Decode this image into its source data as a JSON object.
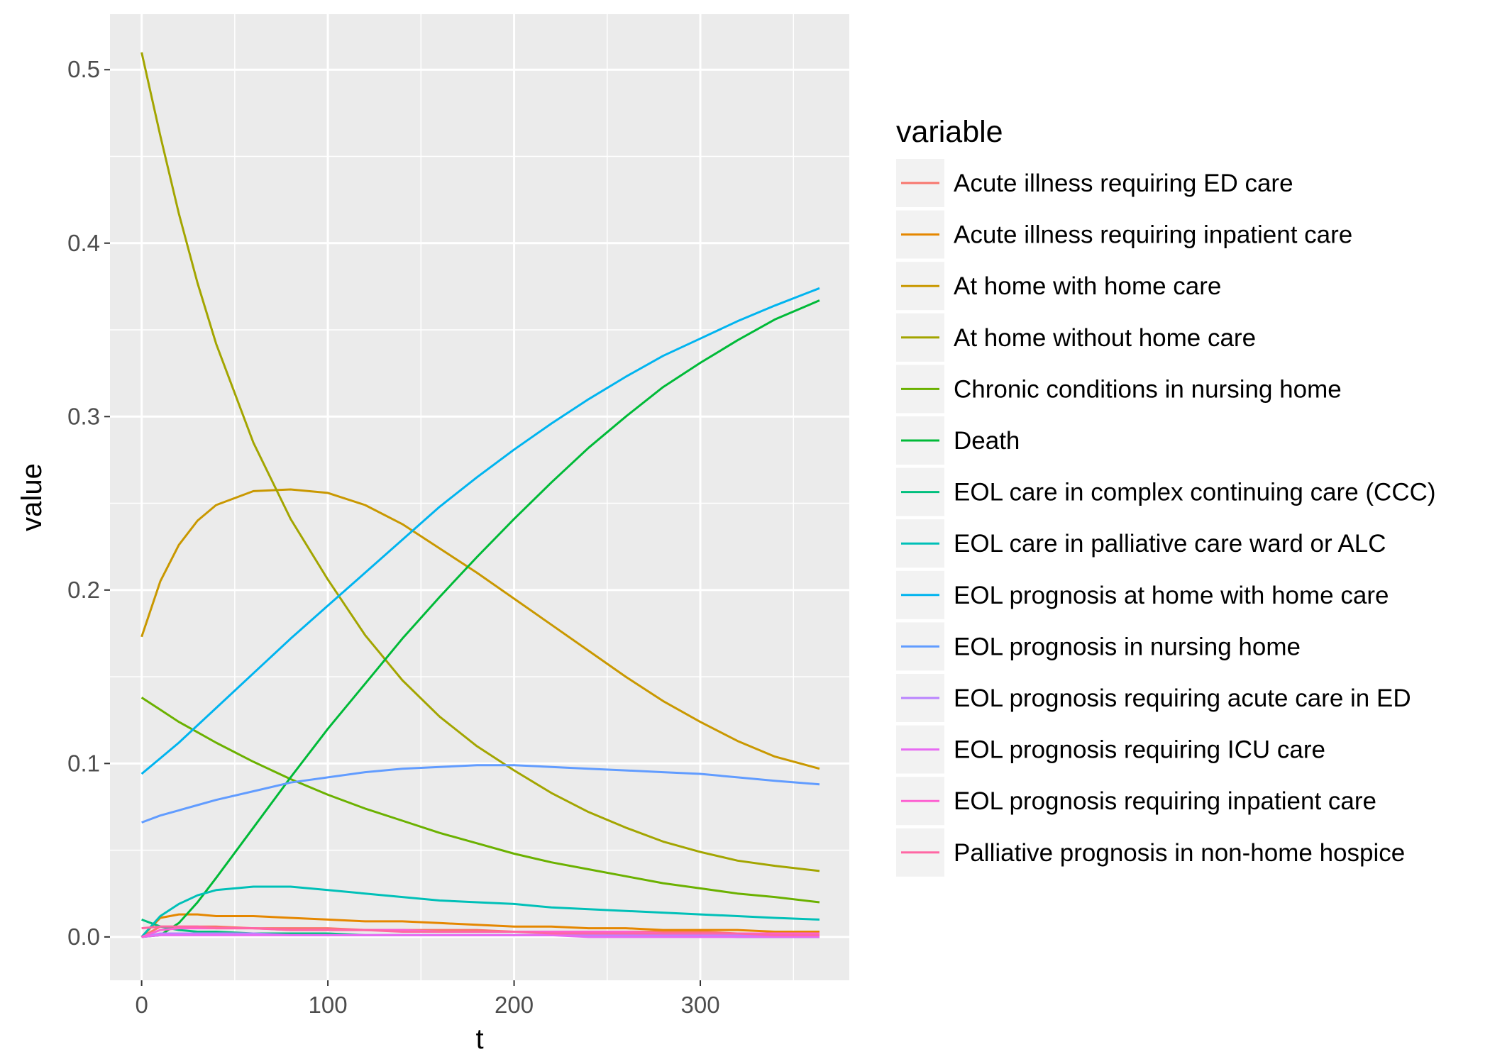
{
  "chart_data": {
    "type": "line",
    "xlabel": "t",
    "ylabel": "value",
    "xlim": [
      -17,
      380
    ],
    "ylim": [
      -0.025,
      0.532
    ],
    "x_ticks": [
      "0",
      "100",
      "200",
      "300"
    ],
    "y_ticks": [
      "0.0",
      "0.1",
      "0.2",
      "0.3",
      "0.4",
      "0.5"
    ],
    "grid": true,
    "legend_title": "variable",
    "legend_position": "right",
    "x": [
      0,
      10,
      20,
      30,
      40,
      60,
      80,
      100,
      120,
      140,
      160,
      180,
      200,
      220,
      240,
      260,
      280,
      300,
      320,
      340,
      364
    ],
    "series": [
      {
        "name": "Acute illness requiring ED care",
        "color": "#F8766D",
        "values": [
          0.0,
          0.006,
          0.006,
          0.006,
          0.006,
          0.005,
          0.005,
          0.005,
          0.004,
          0.004,
          0.004,
          0.004,
          0.003,
          0.003,
          0.003,
          0.003,
          0.003,
          0.003,
          0.002,
          0.002,
          0.002
        ]
      },
      {
        "name": "Acute illness requiring inpatient care",
        "color": "#E58700",
        "values": [
          0.0,
          0.011,
          0.013,
          0.013,
          0.012,
          0.012,
          0.011,
          0.01,
          0.009,
          0.009,
          0.008,
          0.007,
          0.006,
          0.006,
          0.005,
          0.005,
          0.004,
          0.004,
          0.004,
          0.003,
          0.003
        ]
      },
      {
        "name": "At home with home care",
        "color": "#C99800",
        "values": [
          0.173,
          0.205,
          0.226,
          0.24,
          0.249,
          0.257,
          0.258,
          0.256,
          0.249,
          0.238,
          0.224,
          0.21,
          0.195,
          0.18,
          0.165,
          0.15,
          0.136,
          0.124,
          0.113,
          0.104,
          0.097
        ]
      },
      {
        "name": "At home without home care",
        "color": "#A3A500",
        "values": [
          0.51,
          0.462,
          0.417,
          0.377,
          0.342,
          0.285,
          0.241,
          0.206,
          0.174,
          0.148,
          0.127,
          0.11,
          0.096,
          0.083,
          0.072,
          0.063,
          0.055,
          0.049,
          0.044,
          0.041,
          0.038
        ]
      },
      {
        "name": "Chronic conditions in nursing home",
        "color": "#6BB100",
        "values": [
          0.138,
          0.131,
          0.124,
          0.118,
          0.112,
          0.101,
          0.091,
          0.082,
          0.074,
          0.067,
          0.06,
          0.054,
          0.048,
          0.043,
          0.039,
          0.035,
          0.031,
          0.028,
          0.025,
          0.023,
          0.02
        ]
      },
      {
        "name": "Death",
        "color": "#00BA38",
        "values": [
          0.0,
          0.001,
          0.008,
          0.02,
          0.034,
          0.063,
          0.092,
          0.12,
          0.146,
          0.172,
          0.196,
          0.219,
          0.241,
          0.262,
          0.282,
          0.3,
          0.317,
          0.331,
          0.344,
          0.356,
          0.367
        ]
      },
      {
        "name": "EOL care in complex continuing care (CCC)",
        "color": "#00BF7D",
        "values": [
          0.01,
          0.006,
          0.004,
          0.003,
          0.003,
          0.002,
          0.002,
          0.002,
          0.001,
          0.001,
          0.001,
          0.001,
          0.001,
          0.001,
          0.001,
          0.001,
          0.001,
          0.001,
          0.0,
          0.0,
          0.0
        ]
      },
      {
        "name": "EOL care in palliative care ward or ALC",
        "color": "#00C0B8",
        "values": [
          0.0,
          0.012,
          0.019,
          0.024,
          0.027,
          0.029,
          0.029,
          0.027,
          0.025,
          0.023,
          0.021,
          0.02,
          0.019,
          0.017,
          0.016,
          0.015,
          0.014,
          0.013,
          0.012,
          0.011,
          0.01
        ]
      },
      {
        "name": "EOL prognosis at home with home care",
        "color": "#00B4EF",
        "values": [
          0.094,
          0.103,
          0.112,
          0.122,
          0.132,
          0.152,
          0.172,
          0.191,
          0.21,
          0.229,
          0.248,
          0.265,
          0.281,
          0.296,
          0.31,
          0.323,
          0.335,
          0.345,
          0.355,
          0.364,
          0.374
        ]
      },
      {
        "name": "EOL prognosis in nursing home",
        "color": "#619CFF",
        "values": [
          0.066,
          0.07,
          0.073,
          0.076,
          0.079,
          0.084,
          0.089,
          0.092,
          0.095,
          0.097,
          0.098,
          0.099,
          0.099,
          0.098,
          0.097,
          0.096,
          0.095,
          0.094,
          0.092,
          0.09,
          0.088
        ]
      },
      {
        "name": "EOL prognosis requiring acute care in ED",
        "color": "#B983FF",
        "values": [
          0.0,
          0.002,
          0.002,
          0.002,
          0.002,
          0.002,
          0.001,
          0.001,
          0.001,
          0.001,
          0.001,
          0.001,
          0.001,
          0.001,
          0.001,
          0.001,
          0.001,
          0.001,
          0.001,
          0.001,
          0.001
        ]
      },
      {
        "name": "EOL prognosis requiring ICU care",
        "color": "#E76BF3",
        "values": [
          0.0,
          0.001,
          0.001,
          0.001,
          0.001,
          0.001,
          0.001,
          0.001,
          0.001,
          0.001,
          0.001,
          0.001,
          0.001,
          0.001,
          0.0,
          0.0,
          0.0,
          0.0,
          0.0,
          0.0,
          0.0
        ]
      },
      {
        "name": "EOL prognosis requiring inpatient care",
        "color": "#FD61D1",
        "values": [
          0.0,
          0.004,
          0.005,
          0.005,
          0.005,
          0.005,
          0.004,
          0.004,
          0.004,
          0.004,
          0.003,
          0.003,
          0.003,
          0.003,
          0.003,
          0.003,
          0.002,
          0.002,
          0.002,
          0.002,
          0.002
        ]
      },
      {
        "name": "Palliative prognosis in non-home hospice",
        "color": "#FF67A4",
        "values": [
          0.005,
          0.006,
          0.006,
          0.006,
          0.005,
          0.005,
          0.004,
          0.004,
          0.004,
          0.003,
          0.003,
          0.003,
          0.003,
          0.002,
          0.002,
          0.002,
          0.002,
          0.002,
          0.002,
          0.001,
          0.001
        ]
      }
    ]
  }
}
